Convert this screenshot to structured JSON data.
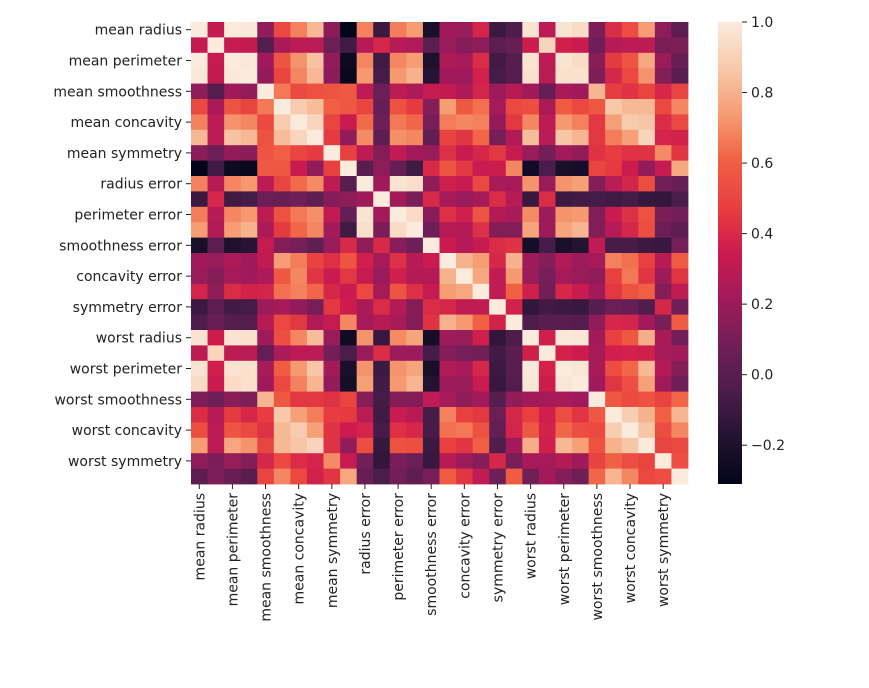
{
  "chart_data": {
    "type": "heatmap",
    "title": "",
    "xlabel": "",
    "ylabel": "",
    "colormap": "rocket",
    "vmin": -0.31,
    "vmax": 1.0,
    "tick_labels": [
      "mean radius",
      "mean perimeter",
      "mean smoothness",
      "mean concavity",
      "mean symmetry",
      "radius error",
      "perimeter error",
      "smoothness error",
      "concavity error",
      "symmetry error",
      "worst radius",
      "worst perimeter",
      "worst smoothness",
      "worst concavity",
      "worst symmetry"
    ],
    "colorbar_ticks": [
      1.0,
      0.8,
      0.6,
      0.4,
      0.2,
      0.0,
      -0.2
    ],
    "colorbar_tick_labels": [
      "1.0",
      "0.8",
      "0.6",
      "0.4",
      "0.2",
      "0.0",
      "−0.2"
    ],
    "matrix": [
      [
        1.0,
        0.32,
        1.0,
        0.99,
        0.17,
        0.51,
        0.68,
        0.82,
        0.15,
        -0.31,
        0.68,
        -0.1,
        0.67,
        0.74,
        -0.22,
        0.21,
        0.19,
        0.38,
        -0.1,
        -0.04,
        0.97,
        0.3,
        0.97,
        0.94,
        0.12,
        0.41,
        0.53,
        0.74,
        0.16,
        0.01
      ],
      [
        0.32,
        1.0,
        0.33,
        0.32,
        -0.02,
        0.24,
        0.3,
        0.29,
        0.07,
        -0.08,
        0.28,
        0.39,
        0.28,
        0.26,
        0.01,
        0.19,
        0.14,
        0.16,
        0.01,
        0.05,
        0.35,
        0.91,
        0.36,
        0.34,
        0.08,
        0.28,
        0.3,
        0.3,
        0.11,
        0.12
      ],
      [
        1.0,
        0.33,
        1.0,
        0.99,
        0.21,
        0.56,
        0.72,
        0.85,
        0.18,
        -0.26,
        0.69,
        -0.09,
        0.69,
        0.74,
        -0.2,
        0.25,
        0.23,
        0.41,
        -0.08,
        -0.01,
        0.97,
        0.3,
        0.97,
        0.94,
        0.15,
        0.46,
        0.56,
        0.77,
        0.19,
        0.05
      ],
      [
        0.99,
        0.32,
        0.99,
        1.0,
        0.18,
        0.5,
        0.69,
        0.82,
        0.15,
        -0.28,
        0.73,
        -0.07,
        0.73,
        0.8,
        -0.17,
        0.21,
        0.21,
        0.37,
        -0.07,
        -0.02,
        0.96,
        0.29,
        0.96,
        0.96,
        0.12,
        0.39,
        0.51,
        0.72,
        0.14,
        0.0
      ],
      [
        0.17,
        -0.02,
        0.21,
        0.18,
        1.0,
        0.66,
        0.52,
        0.55,
        0.56,
        0.58,
        0.3,
        0.07,
        0.3,
        0.25,
        0.33,
        0.32,
        0.25,
        0.38,
        0.2,
        0.28,
        0.21,
        0.04,
        0.24,
        0.21,
        0.81,
        0.47,
        0.43,
        0.5,
        0.39,
        0.5
      ],
      [
        0.51,
        0.24,
        0.56,
        0.5,
        0.66,
        1.0,
        0.88,
        0.83,
        0.6,
        0.57,
        0.5,
        0.05,
        0.55,
        0.46,
        0.14,
        0.74,
        0.57,
        0.64,
        0.23,
        0.51,
        0.54,
        0.25,
        0.59,
        0.51,
        0.57,
        0.87,
        0.82,
        0.82,
        0.51,
        0.69
      ],
      [
        0.68,
        0.3,
        0.72,
        0.69,
        0.52,
        0.88,
        1.0,
        0.92,
        0.5,
        0.34,
        0.63,
        0.08,
        0.66,
        0.62,
        0.1,
        0.67,
        0.69,
        0.68,
        0.18,
        0.45,
        0.69,
        0.3,
        0.73,
        0.68,
        0.45,
        0.75,
        0.88,
        0.86,
        0.41,
        0.51
      ],
      [
        0.82,
        0.29,
        0.85,
        0.82,
        0.55,
        0.83,
        0.92,
        1.0,
        0.46,
        0.17,
        0.7,
        0.02,
        0.71,
        0.69,
        0.03,
        0.49,
        0.44,
        0.62,
        0.1,
        0.26,
        0.83,
        0.29,
        0.86,
        0.81,
        0.45,
        0.67,
        0.75,
        0.91,
        0.38,
        0.37
      ],
      [
        0.15,
        0.07,
        0.18,
        0.15,
        0.56,
        0.6,
        0.5,
        0.46,
        1.0,
        0.48,
        0.3,
        0.13,
        0.31,
        0.22,
        0.19,
        0.42,
        0.34,
        0.39,
        0.45,
        0.33,
        0.19,
        0.09,
        0.22,
        0.18,
        0.43,
        0.47,
        0.43,
        0.43,
        0.7,
        0.44
      ],
      [
        -0.31,
        -0.08,
        -0.26,
        -0.28,
        0.58,
        0.57,
        0.34,
        0.17,
        0.48,
        1.0,
        0.0,
        0.16,
        0.04,
        -0.09,
        0.4,
        0.56,
        0.45,
        0.34,
        0.35,
        0.69,
        -0.25,
        -0.05,
        -0.21,
        -0.23,
        0.5,
        0.46,
        0.35,
        0.18,
        0.33,
        0.77
      ],
      [
        0.68,
        0.28,
        0.69,
        0.73,
        0.3,
        0.5,
        0.63,
        0.7,
        0.3,
        0.0,
        1.0,
        0.21,
        0.97,
        0.95,
        0.16,
        0.36,
        0.33,
        0.51,
        0.24,
        0.23,
        0.72,
        0.19,
        0.72,
        0.75,
        0.14,
        0.29,
        0.38,
        0.53,
        0.09,
        0.05
      ],
      [
        -0.1,
        0.39,
        -0.09,
        -0.07,
        0.07,
        0.05,
        0.08,
        0.02,
        0.13,
        0.16,
        0.21,
        1.0,
        0.22,
        0.11,
        0.4,
        0.23,
        0.19,
        0.23,
        0.41,
        0.28,
        -0.11,
        0.41,
        -0.1,
        -0.08,
        -0.07,
        -0.09,
        -0.07,
        -0.12,
        -0.13,
        -0.05
      ],
      [
        0.67,
        0.28,
        0.69,
        0.73,
        0.3,
        0.55,
        0.66,
        0.71,
        0.31,
        0.04,
        0.97,
        0.22,
        1.0,
        0.94,
        0.15,
        0.42,
        0.36,
        0.56,
        0.27,
        0.24,
        0.7,
        0.2,
        0.72,
        0.73,
        0.13,
        0.34,
        0.42,
        0.55,
        0.11,
        0.09
      ],
      [
        0.74,
        0.26,
        0.74,
        0.8,
        0.25,
        0.46,
        0.62,
        0.69,
        0.22,
        -0.09,
        0.95,
        0.11,
        0.94,
        1.0,
        0.08,
        0.28,
        0.27,
        0.42,
        0.13,
        0.13,
        0.76,
        0.2,
        0.76,
        0.81,
        0.13,
        0.28,
        0.39,
        0.54,
        0.07,
        0.02
      ],
      [
        -0.22,
        0.01,
        -0.2,
        -0.17,
        0.33,
        0.14,
        0.1,
        0.03,
        0.19,
        0.4,
        0.16,
        0.4,
        0.15,
        0.08,
        1.0,
        0.34,
        0.27,
        0.33,
        0.41,
        0.43,
        -0.23,
        -0.07,
        -0.22,
        -0.18,
        0.31,
        -0.06,
        -0.06,
        -0.1,
        -0.11,
        0.1
      ],
      [
        0.21,
        0.19,
        0.25,
        0.21,
        0.32,
        0.74,
        0.67,
        0.49,
        0.42,
        0.56,
        0.36,
        0.23,
        0.42,
        0.28,
        0.34,
        1.0,
        0.8,
        0.74,
        0.39,
        0.8,
        0.2,
        0.14,
        0.26,
        0.2,
        0.23,
        0.68,
        0.64,
        0.48,
        0.28,
        0.59
      ],
      [
        0.19,
        0.14,
        0.23,
        0.21,
        0.25,
        0.57,
        0.69,
        0.44,
        0.34,
        0.45,
        0.33,
        0.19,
        0.36,
        0.27,
        0.27,
        0.8,
        1.0,
        0.77,
        0.31,
        0.73,
        0.19,
        0.1,
        0.23,
        0.19,
        0.17,
        0.48,
        0.66,
        0.44,
        0.2,
        0.44
      ],
      [
        0.38,
        0.16,
        0.41,
        0.37,
        0.38,
        0.64,
        0.68,
        0.62,
        0.39,
        0.34,
        0.51,
        0.23,
        0.56,
        0.42,
        0.33,
        0.74,
        0.77,
        1.0,
        0.31,
        0.61,
        0.36,
        0.09,
        0.39,
        0.34,
        0.22,
        0.45,
        0.55,
        0.6,
        0.14,
        0.31
      ],
      [
        -0.1,
        0.01,
        -0.08,
        -0.07,
        0.2,
        0.23,
        0.18,
        0.1,
        0.45,
        0.35,
        0.24,
        0.41,
        0.27,
        0.13,
        0.41,
        0.39,
        0.31,
        0.31,
        1.0,
        0.37,
        -0.13,
        -0.08,
        -0.1,
        -0.11,
        -0.01,
        0.06,
        0.04,
        -0.03,
        0.39,
        0.08
      ],
      [
        -0.04,
        0.05,
        -0.01,
        -0.02,
        0.28,
        0.51,
        0.45,
        0.26,
        0.33,
        0.69,
        0.23,
        0.28,
        0.24,
        0.13,
        0.43,
        0.8,
        0.73,
        0.61,
        0.37,
        1.0,
        -0.04,
        0.0,
        0.0,
        -0.02,
        0.17,
        0.39,
        0.38,
        0.22,
        0.11,
        0.59
      ],
      [
        0.97,
        0.35,
        0.97,
        0.96,
        0.21,
        0.54,
        0.69,
        0.83,
        0.19,
        -0.25,
        0.72,
        -0.11,
        0.7,
        0.76,
        -0.23,
        0.2,
        0.19,
        0.36,
        -0.13,
        -0.04,
        1.0,
        0.36,
        0.99,
        0.98,
        0.22,
        0.48,
        0.57,
        0.79,
        0.24,
        0.09
      ],
      [
        0.3,
        0.91,
        0.3,
        0.29,
        0.04,
        0.25,
        0.3,
        0.29,
        0.09,
        -0.05,
        0.19,
        0.41,
        0.2,
        0.2,
        -0.07,
        0.14,
        0.1,
        0.09,
        -0.08,
        0.0,
        0.36,
        1.0,
        0.37,
        0.35,
        0.23,
        0.36,
        0.37,
        0.36,
        0.23,
        0.22
      ],
      [
        0.97,
        0.36,
        0.97,
        0.96,
        0.24,
        0.59,
        0.73,
        0.86,
        0.22,
        -0.21,
        0.72,
        -0.1,
        0.72,
        0.76,
        -0.22,
        0.26,
        0.23,
        0.39,
        -0.1,
        0.0,
        0.99,
        0.37,
        1.0,
        0.98,
        0.24,
        0.53,
        0.62,
        0.82,
        0.27,
        0.14
      ],
      [
        0.94,
        0.34,
        0.94,
        0.96,
        0.21,
        0.51,
        0.68,
        0.81,
        0.18,
        -0.23,
        0.75,
        -0.08,
        0.73,
        0.81,
        -0.18,
        0.2,
        0.19,
        0.34,
        -0.11,
        -0.02,
        0.98,
        0.35,
        0.98,
        1.0,
        0.21,
        0.44,
        0.54,
        0.75,
        0.21,
        0.08
      ],
      [
        0.12,
        0.08,
        0.15,
        0.12,
        0.81,
        0.57,
        0.45,
        0.45,
        0.43,
        0.5,
        0.14,
        -0.07,
        0.13,
        0.13,
        0.31,
        0.23,
        0.17,
        0.22,
        -0.01,
        0.17,
        0.22,
        0.23,
        0.24,
        0.21,
        1.0,
        0.57,
        0.52,
        0.55,
        0.49,
        0.62
      ],
      [
        0.41,
        0.28,
        0.46,
        0.39,
        0.47,
        0.87,
        0.75,
        0.67,
        0.47,
        0.46,
        0.29,
        -0.09,
        0.34,
        0.28,
        -0.06,
        0.68,
        0.48,
        0.45,
        0.06,
        0.39,
        0.48,
        0.36,
        0.53,
        0.44,
        0.57,
        1.0,
        0.89,
        0.8,
        0.61,
        0.81
      ],
      [
        0.53,
        0.3,
        0.56,
        0.51,
        0.43,
        0.82,
        0.88,
        0.75,
        0.43,
        0.35,
        0.38,
        -0.07,
        0.42,
        0.39,
        -0.06,
        0.64,
        0.66,
        0.55,
        0.04,
        0.38,
        0.57,
        0.37,
        0.62,
        0.54,
        0.52,
        0.89,
        1.0,
        0.86,
        0.53,
        0.69
      ],
      [
        0.74,
        0.3,
        0.77,
        0.72,
        0.5,
        0.82,
        0.86,
        0.91,
        0.43,
        0.18,
        0.53,
        -0.12,
        0.55,
        0.54,
        -0.1,
        0.48,
        0.44,
        0.6,
        -0.03,
        0.22,
        0.79,
        0.36,
        0.82,
        0.75,
        0.55,
        0.8,
        0.86,
        1.0,
        0.5,
        0.51
      ],
      [
        0.16,
        0.11,
        0.19,
        0.14,
        0.39,
        0.51,
        0.41,
        0.38,
        0.7,
        0.33,
        0.09,
        -0.13,
        0.11,
        0.07,
        -0.11,
        0.28,
        0.2,
        0.14,
        0.39,
        0.11,
        0.24,
        0.23,
        0.27,
        0.21,
        0.49,
        0.61,
        0.53,
        0.5,
        1.0,
        0.54
      ],
      [
        0.01,
        0.12,
        0.05,
        0.0,
        0.5,
        0.69,
        0.51,
        0.37,
        0.44,
        0.77,
        0.05,
        -0.05,
        0.09,
        0.02,
        0.1,
        0.59,
        0.44,
        0.31,
        0.08,
        0.59,
        0.09,
        0.22,
        0.14,
        0.08,
        0.62,
        0.81,
        0.69,
        0.51,
        0.54,
        1.0
      ]
    ]
  }
}
